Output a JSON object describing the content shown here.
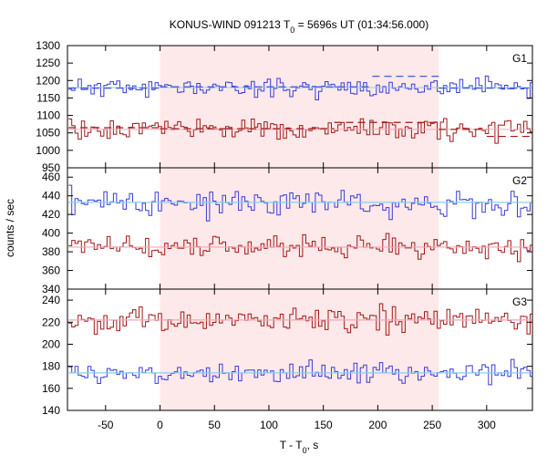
{
  "chart_data": {
    "type": "line",
    "title_parts": [
      "KONUS-WIND 091213 T",
      "0",
      " = 5696s UT (01:34:56.000)"
    ],
    "xlabel_parts": [
      "T - T",
      "0",
      ", s"
    ],
    "ylabel": "counts / sec",
    "xlim": [
      -85,
      342
    ],
    "xticks": [
      -50,
      0,
      50,
      100,
      150,
      200,
      250,
      300
    ],
    "shaded_interval": [
      0,
      256
    ],
    "grid": false,
    "colors": {
      "shade": "#fde9e9",
      "series_blue": "#3b3bd6",
      "series_red": "#a01818",
      "fit_blue": "#2a4fd0",
      "fit_red": "#a01818",
      "bg_line_blue": "#8ecbf2",
      "bg_line_red": "#f2a6b8"
    },
    "panels": [
      {
        "label": "G1",
        "ylim": [
          950,
          1300
        ],
        "yticks": [
          950,
          1000,
          1050,
          1100,
          1150,
          1200,
          1250,
          1300
        ],
        "series": [
          {
            "color_key": "series_blue",
            "bin_width": 2.944,
            "x_start": -84.0,
            "mean": 1180,
            "amp": 20,
            "seed": 11,
            "fit": {
              "style": "dash",
              "color_key": "fit_blue",
              "segments": [
                [
                  -84,
                  0,
                  1178
                ],
                [
                  0,
                  195,
                  1182
                ],
                [
                  195,
                  256,
                  1212
                ],
                [
                  256,
                  342,
                  1178
                ]
              ]
            },
            "bg": {
              "color_key": "bg_line_blue",
              "value": 1180
            }
          },
          {
            "color_key": "series_red",
            "bin_width": 2.944,
            "x_start": -84.0,
            "mean": 1060,
            "amp": 22,
            "seed": 29,
            "fit": {
              "style": "dash",
              "color_key": "fit_red",
              "segments": [
                [
                  -84,
                  0,
                  1065
                ],
                [
                  0,
                  60,
                  1062
                ],
                [
                  60,
                  160,
                  1062
                ],
                [
                  160,
                  256,
                  1080
                ],
                [
                  256,
                  300,
                  1060
                ],
                [
                  300,
                  342,
                  1040
                ]
              ]
            },
            "bg": {
              "color_key": "bg_line_red",
              "value": 1060
            }
          }
        ]
      },
      {
        "label": "G2",
        "ylim": [
          340,
          470
        ],
        "yticks": [
          340,
          360,
          380,
          400,
          420,
          440,
          460
        ],
        "series": [
          {
            "color_key": "series_blue",
            "bin_width": 2.944,
            "x_start": -84.0,
            "mean": 433,
            "amp": 11,
            "seed": 47,
            "fit": {
              "style": "solid",
              "color_key": "bg_line_blue",
              "segments": [
                [
                  -84,
                  342,
                  433
                ]
              ]
            },
            "bg": null
          },
          {
            "color_key": "series_red",
            "bin_width": 2.944,
            "x_start": -84.0,
            "mean": 385,
            "amp": 9,
            "seed": 61,
            "fit": {
              "style": "solid",
              "color_key": "bg_line_red",
              "segments": [
                [
                  -84,
                  342,
                  385
                ]
              ]
            },
            "bg": null
          }
        ]
      },
      {
        "label": "G3",
        "ylim": [
          140,
          250
        ],
        "yticks": [
          140,
          160,
          180,
          200,
          220,
          240
        ],
        "series": [
          {
            "color_key": "series_red",
            "bin_width": 2.944,
            "x_start": -84.0,
            "mean": 222,
            "amp": 9,
            "seed": 83,
            "fit": {
              "style": "solid",
              "color_key": "bg_line_red",
              "segments": [
                [
                  -84,
                  342,
                  222
                ]
              ]
            },
            "bg": null
          },
          {
            "color_key": "series_blue",
            "bin_width": 2.944,
            "x_start": -84.0,
            "mean": 174,
            "amp": 7,
            "seed": 97,
            "fit": {
              "style": "solid",
              "color_key": "bg_line_blue",
              "segments": [
                [
                  -84,
                  342,
                  174
                ]
              ]
            },
            "bg": null
          }
        ]
      }
    ]
  }
}
